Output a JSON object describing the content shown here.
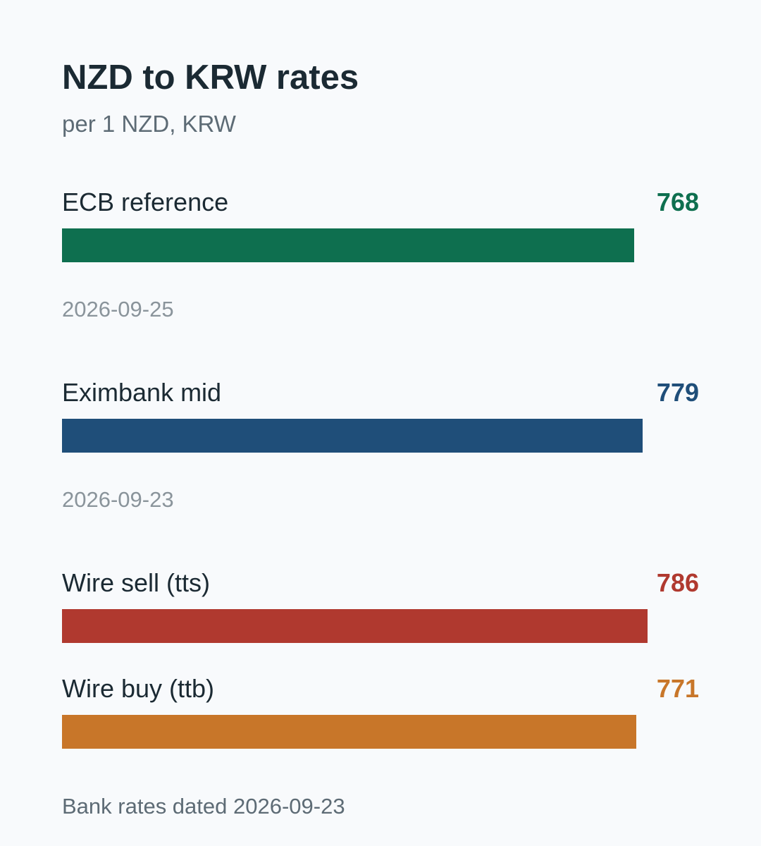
{
  "chart_data": {
    "type": "bar",
    "orientation": "horizontal",
    "title": "NZD to KRW rates",
    "subtitle": "per 1 NZD, KRW",
    "categories": [
      "ECB reference",
      "Eximbank mid",
      "Wire sell (tts)",
      "Wire buy (ttb)"
    ],
    "values": [
      768,
      779,
      786,
      771
    ],
    "value_labels": [
      "768",
      "779",
      "786",
      "771"
    ],
    "dates": [
      "2026-09-25",
      "2026-09-23",
      "",
      ""
    ],
    "colors": [
      "#0e6f4f",
      "#1f4e79",
      "#b0392f",
      "#c87629"
    ],
    "footnote": "Bank rates dated 2026-09-23",
    "grid": false,
    "legend": "none"
  }
}
